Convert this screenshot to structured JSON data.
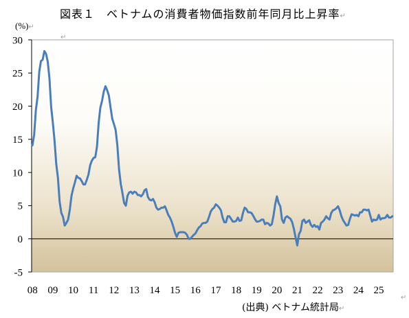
{
  "paragraph_mark": "↵",
  "source_note": "(出典) ベトナム統計局",
  "colors": {
    "series_line": "#4a7ebb",
    "axis": "#000000",
    "plot_border": "#a6a6a6",
    "plot_fill_top": "#ffffff",
    "plot_fill_bottom": "#d3c29b",
    "paragraph_mark": "#9c9c9c"
  },
  "chart_data": {
    "type": "line",
    "title": "図表１　ベトナムの消費者物価指数前年同月比上昇率",
    "ylabel": "(%)",
    "ylim": [
      -5,
      30
    ],
    "yticks": [
      30,
      25,
      20,
      15,
      10,
      5,
      0,
      -5
    ],
    "grid": false,
    "legend": "none",
    "xticks": [
      {
        "label": "08",
        "x": "2008-01"
      },
      {
        "label": "09",
        "x": "2009-01"
      },
      {
        "label": "10",
        "x": "2010-01"
      },
      {
        "label": "11",
        "x": "2011-01"
      },
      {
        "label": "12",
        "x": "2012-01"
      },
      {
        "label": "13",
        "x": "2013-01"
      },
      {
        "label": "14",
        "x": "2014-01"
      },
      {
        "label": "15",
        "x": "2015-01"
      },
      {
        "label": "16",
        "x": "2016-01"
      },
      {
        "label": "17",
        "x": "2017-01"
      },
      {
        "label": "18",
        "x": "2018-01"
      },
      {
        "label": "19",
        "x": "2019-01"
      },
      {
        "label": "20",
        "x": "2020-01"
      },
      {
        "label": "21",
        "x": "2021-01"
      },
      {
        "label": "22",
        "x": "2022-01"
      },
      {
        "label": "23",
        "x": "2023-01"
      },
      {
        "label": "24",
        "x": "2024-01"
      },
      {
        "label": "25",
        "x": "2025-01"
      }
    ],
    "x": [
      "2008-01",
      "2008-02",
      "2008-03",
      "2008-04",
      "2008-05",
      "2008-06",
      "2008-07",
      "2008-08",
      "2008-09",
      "2008-10",
      "2008-11",
      "2008-12",
      "2009-01",
      "2009-02",
      "2009-03",
      "2009-04",
      "2009-05",
      "2009-06",
      "2009-07",
      "2009-08",
      "2009-09",
      "2009-10",
      "2009-11",
      "2009-12",
      "2010-01",
      "2010-02",
      "2010-03",
      "2010-04",
      "2010-05",
      "2010-06",
      "2010-07",
      "2010-08",
      "2010-09",
      "2010-10",
      "2010-11",
      "2010-12",
      "2011-01",
      "2011-02",
      "2011-03",
      "2011-04",
      "2011-05",
      "2011-06",
      "2011-07",
      "2011-08",
      "2011-09",
      "2011-10",
      "2011-11",
      "2011-12",
      "2012-01",
      "2012-02",
      "2012-03",
      "2012-04",
      "2012-05",
      "2012-06",
      "2012-07",
      "2012-08",
      "2012-09",
      "2012-10",
      "2012-11",
      "2012-12",
      "2013-01",
      "2013-02",
      "2013-03",
      "2013-04",
      "2013-05",
      "2013-06",
      "2013-07",
      "2013-08",
      "2013-09",
      "2013-10",
      "2013-11",
      "2013-12",
      "2014-01",
      "2014-02",
      "2014-03",
      "2014-04",
      "2014-05",
      "2014-06",
      "2014-07",
      "2014-08",
      "2014-09",
      "2014-10",
      "2014-11",
      "2014-12",
      "2015-01",
      "2015-02",
      "2015-03",
      "2015-04",
      "2015-05",
      "2015-06",
      "2015-07",
      "2015-08",
      "2015-09",
      "2015-10",
      "2015-11",
      "2015-12",
      "2016-01",
      "2016-02",
      "2016-03",
      "2016-04",
      "2016-05",
      "2016-06",
      "2016-07",
      "2016-08",
      "2016-09",
      "2016-10",
      "2016-11",
      "2016-12",
      "2017-01",
      "2017-02",
      "2017-03",
      "2017-04",
      "2017-05",
      "2017-06",
      "2017-07",
      "2017-08",
      "2017-09",
      "2017-10",
      "2017-11",
      "2017-12",
      "2018-01",
      "2018-02",
      "2018-03",
      "2018-04",
      "2018-05",
      "2018-06",
      "2018-07",
      "2018-08",
      "2018-09",
      "2018-10",
      "2018-11",
      "2018-12",
      "2019-01",
      "2019-02",
      "2019-03",
      "2019-04",
      "2019-05",
      "2019-06",
      "2019-07",
      "2019-08",
      "2019-09",
      "2019-10",
      "2019-11",
      "2019-12",
      "2020-01",
      "2020-02",
      "2020-03",
      "2020-04",
      "2020-05",
      "2020-06",
      "2020-07",
      "2020-08",
      "2020-09",
      "2020-10",
      "2020-11",
      "2020-12",
      "2021-01",
      "2021-02",
      "2021-03",
      "2021-04",
      "2021-05",
      "2021-06",
      "2021-07",
      "2021-08",
      "2021-09",
      "2021-10",
      "2021-11",
      "2021-12",
      "2022-01",
      "2022-02",
      "2022-03",
      "2022-04",
      "2022-05",
      "2022-06",
      "2022-07",
      "2022-08",
      "2022-09",
      "2022-10",
      "2022-11",
      "2022-12",
      "2023-01",
      "2023-02",
      "2023-03",
      "2023-04",
      "2023-05",
      "2023-06",
      "2023-07",
      "2023-08",
      "2023-09",
      "2023-10",
      "2023-11",
      "2023-12",
      "2024-01",
      "2024-02",
      "2024-03",
      "2024-04",
      "2024-05",
      "2024-06",
      "2024-07",
      "2024-08",
      "2024-09",
      "2024-10",
      "2024-11",
      "2024-12",
      "2025-01",
      "2025-02",
      "2025-03",
      "2025-04",
      "2025-05",
      "2025-06",
      "2025-07",
      "2025-08",
      "2025-09"
    ],
    "series": [
      {
        "values": [
          14.1,
          15.7,
          19.4,
          21.4,
          25.2,
          26.8,
          27.0,
          28.3,
          27.9,
          26.7,
          24.2,
          19.9,
          17.5,
          14.8,
          11.3,
          9.2,
          5.6,
          3.9,
          3.3,
          2.0,
          2.4,
          2.9,
          4.4,
          6.5,
          7.6,
          8.5,
          9.5,
          9.2,
          9.1,
          8.7,
          8.2,
          8.2,
          8.9,
          9.7,
          11.1,
          11.8,
          12.2,
          12.3,
          13.9,
          17.5,
          19.8,
          20.8,
          22.2,
          23.0,
          22.4,
          21.6,
          19.8,
          18.1,
          17.3,
          16.4,
          14.1,
          10.5,
          8.3,
          6.9,
          5.4,
          5.0,
          6.5,
          7.0,
          7.1,
          6.8,
          7.1,
          7.0,
          6.6,
          6.6,
          6.4,
          6.7,
          7.3,
          7.5,
          6.3,
          5.9,
          5.8,
          6.0,
          5.5,
          4.7,
          4.4,
          4.5,
          4.7,
          4.7,
          4.9,
          4.3,
          3.6,
          3.2,
          2.6,
          1.8,
          0.9,
          0.3,
          0.9,
          1.0,
          1.0,
          1.0,
          0.9,
          0.6,
          0.0,
          0.0,
          0.3,
          0.6,
          0.8,
          1.3,
          1.7,
          1.9,
          2.3,
          2.4,
          2.4,
          2.6,
          3.3,
          4.1,
          4.5,
          4.7,
          5.2,
          5.0,
          4.7,
          4.3,
          3.2,
          2.5,
          2.5,
          3.4,
          3.4,
          3.0,
          2.6,
          2.6,
          2.7,
          3.2,
          2.7,
          2.8,
          3.9,
          4.7,
          4.5,
          4.0,
          4.0,
          3.9,
          3.5,
          3.0,
          2.6,
          2.6,
          2.7,
          2.9,
          2.9,
          2.2,
          2.4,
          2.3,
          2.0,
          2.2,
          3.5,
          5.2,
          6.4,
          5.4,
          4.9,
          2.9,
          2.4,
          3.2,
          3.4,
          3.2,
          3.0,
          2.5,
          1.5,
          0.2,
          -1.0,
          0.7,
          1.2,
          2.7,
          2.9,
          2.4,
          2.6,
          2.8,
          2.1,
          1.8,
          2.1,
          1.8,
          1.9,
          1.4,
          2.4,
          2.6,
          2.9,
          3.4,
          3.1,
          2.9,
          3.9,
          4.3,
          4.4,
          4.6,
          4.9,
          4.3,
          3.4,
          2.8,
          2.4,
          2.0,
          2.1,
          3.0,
          3.7,
          3.6,
          3.5,
          3.6,
          3.4,
          4.0,
          4.0,
          4.4,
          4.4,
          4.3,
          4.4,
          3.5,
          2.6,
          2.9,
          2.8,
          2.9,
          3.6,
          2.9,
          3.1,
          3.1,
          3.2,
          3.6,
          3.2,
          3.2,
          3.4
        ]
      }
    ]
  }
}
